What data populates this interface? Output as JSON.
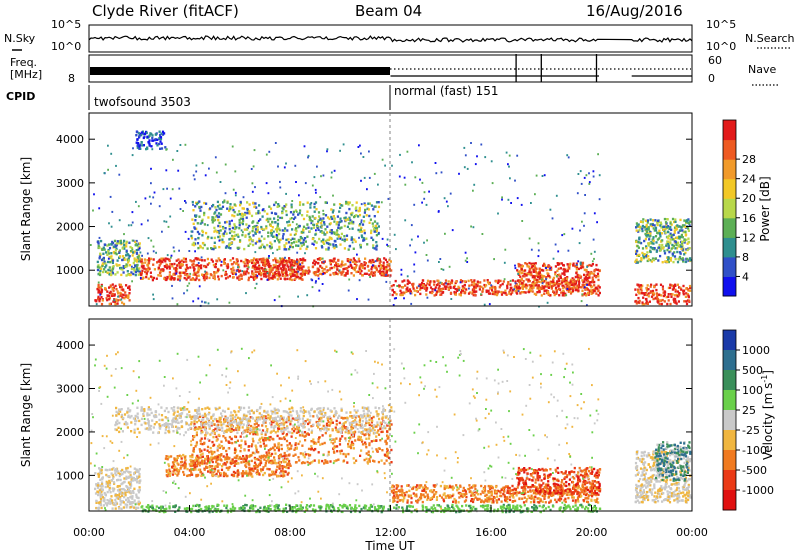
{
  "header": {
    "station": "Clyde River (fitACF)",
    "beam": "Beam 04",
    "date": "16/Aug/2016"
  },
  "summary_panels": {
    "nsky_label": "N.Sky",
    "nsky_ticks": [
      "10^5",
      "10^0"
    ],
    "nsearch_label": "N.Search",
    "freq_label_line1": "Freq.",
    "freq_label_line2": "[MHz]",
    "freq_ticks": [
      "8"
    ],
    "nave_label": "Nave",
    "nave_ticks": [
      "60",
      "0"
    ],
    "nsky_right_ticks": [
      "10^5",
      "10^0"
    ],
    "cpid_label": "CPID",
    "cpid_programs": [
      {
        "name": "twofsound 3503",
        "start_hour": 0
      },
      {
        "name": "normal (fast) 151",
        "start_hour": 12
      }
    ]
  },
  "chart_data": [
    {
      "type": "heatmap",
      "name": "power",
      "xlabel": "",
      "ylabel": "Slant Range [km]",
      "x_range_hours": [
        0,
        24
      ],
      "ylim_km": [
        180,
        4600
      ],
      "yticks": [
        "1000",
        "2000",
        "3000",
        "4000"
      ],
      "colorbar": {
        "label": "Power [dB]",
        "ticks": [
          "4",
          "8",
          "12",
          "16",
          "20",
          "24",
          "28"
        ],
        "colors": [
          "#1010ee",
          "#3050c8",
          "#2f8f8f",
          "#5caf55",
          "#b8d84a",
          "#f2c826",
          "#f19a2a",
          "#ee5a22",
          "#e21a1a"
        ]
      },
      "data_gaps_hours": [
        [
          20.3,
          21.6
        ],
        [
          23.9,
          24
        ]
      ],
      "regions": [
        {
          "t0": 0.2,
          "t1": 1.6,
          "r0": 250,
          "r1": 700,
          "level": "high"
        },
        {
          "t0": 0.3,
          "t1": 2.0,
          "r0": 900,
          "r1": 1700,
          "level": "mid"
        },
        {
          "t0": 2.0,
          "t1": 8.5,
          "r0": 800,
          "r1": 1300,
          "level": "high"
        },
        {
          "t0": 4.0,
          "t1": 11.5,
          "r0": 1500,
          "r1": 2600,
          "level": "mid"
        },
        {
          "t0": 6.5,
          "t1": 12.0,
          "r0": 900,
          "r1": 1300,
          "level": "high"
        },
        {
          "t0": 12.0,
          "t1": 20.3,
          "r0": 450,
          "r1": 800,
          "level": "high"
        },
        {
          "t0": 17.0,
          "t1": 20.3,
          "r0": 600,
          "r1": 1200,
          "level": "high"
        },
        {
          "t0": 21.7,
          "t1": 23.9,
          "r0": 250,
          "r1": 700,
          "level": "high"
        },
        {
          "t0": 21.7,
          "t1": 23.9,
          "r0": 1200,
          "r1": 2200,
          "level": "mid"
        },
        {
          "t0": 1.8,
          "t1": 3.0,
          "r0": 3800,
          "r1": 4200,
          "level": "low"
        }
      ]
    },
    {
      "type": "heatmap",
      "name": "velocity",
      "xlabel": "Time UT",
      "ylabel": "Slant Range [km]",
      "x_range_hours": [
        0,
        24
      ],
      "xticks": [
        "00:00",
        "04:00",
        "08:00",
        "12:00",
        "16:00",
        "20:00",
        "00:00"
      ],
      "ylim_km": [
        180,
        4600
      ],
      "yticks": [
        "1000",
        "2000",
        "3000",
        "4000"
      ],
      "colorbar": {
        "label": "Velocity [m s^-1]",
        "ticks": [
          "1000",
          "500",
          "100",
          "25",
          "-25",
          "-100",
          "-500",
          "-1000"
        ],
        "colors": [
          "#1a3aa8",
          "#2e6f8f",
          "#3a8f5a",
          "#6ad04a",
          "#c9c9c9",
          "#f0b640",
          "#f07a20",
          "#ea3a16",
          "#e01010"
        ]
      },
      "data_gaps_hours": [
        [
          20.3,
          21.6
        ],
        [
          23.9,
          24
        ]
      ],
      "regions": [
        {
          "t0": 0.2,
          "t1": 2.0,
          "r0": 250,
          "r1": 1200,
          "level": "zero"
        },
        {
          "t0": 3.0,
          "t1": 8.0,
          "r0": 1000,
          "r1": 1500,
          "level": "neg_mid"
        },
        {
          "t0": 4.0,
          "t1": 12.0,
          "r0": 1300,
          "r1": 2400,
          "level": "neg_mid"
        },
        {
          "t0": 1.0,
          "t1": 12.0,
          "r0": 2000,
          "r1": 2600,
          "level": "zero"
        },
        {
          "t0": 12.0,
          "t1": 20.3,
          "r0": 400,
          "r1": 800,
          "level": "neg_mid"
        },
        {
          "t0": 17.0,
          "t1": 20.3,
          "r0": 600,
          "r1": 1200,
          "level": "neg_high"
        },
        {
          "t0": 2.0,
          "t1": 20.3,
          "r0": 180,
          "r1": 350,
          "level": "pos_low"
        },
        {
          "t0": 21.7,
          "t1": 23.9,
          "r0": 400,
          "r1": 1600,
          "level": "zero"
        },
        {
          "t0": 22.5,
          "t1": 23.9,
          "r0": 900,
          "r1": 1800,
          "level": "pos_mid"
        }
      ]
    }
  ]
}
